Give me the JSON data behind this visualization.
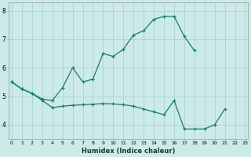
{
  "xlabel": "Humidex (Indice chaleur)",
  "line1_x": [
    0,
    1,
    2,
    3,
    4,
    5,
    6,
    7,
    8,
    9,
    10,
    11,
    12,
    13,
    14,
    15,
    16,
    17,
    18
  ],
  "line1_y": [
    5.5,
    5.25,
    5.1,
    4.9,
    4.85,
    5.3,
    6.0,
    5.5,
    5.6,
    6.5,
    6.4,
    6.65,
    7.15,
    7.3,
    7.7,
    7.8,
    7.8,
    7.1,
    6.6
  ],
  "line2_x": [
    0,
    1,
    2,
    3,
    4,
    5,
    6,
    7,
    8,
    9,
    10,
    11,
    12,
    13,
    14,
    15,
    16,
    17,
    18,
    19,
    20,
    21
  ],
  "line2_y": [
    5.5,
    5.25,
    5.1,
    4.85,
    4.6,
    4.65,
    4.68,
    4.7,
    4.72,
    4.74,
    4.73,
    4.7,
    4.65,
    4.55,
    4.45,
    4.35,
    4.85,
    3.85,
    3.85,
    3.85,
    4.0,
    4.55
  ],
  "bg_color": "#cceae8",
  "grid_color": "#aad4d2",
  "line_color": "#1a7a6e",
  "ylim": [
    3.5,
    8.3
  ],
  "xlim": [
    -0.3,
    23.3
  ],
  "yticks": [
    4,
    5,
    6,
    7,
    8
  ],
  "xticks": [
    0,
    1,
    2,
    3,
    4,
    5,
    6,
    7,
    8,
    9,
    10,
    11,
    12,
    13,
    14,
    15,
    16,
    17,
    18,
    19,
    20,
    21,
    22,
    23
  ]
}
